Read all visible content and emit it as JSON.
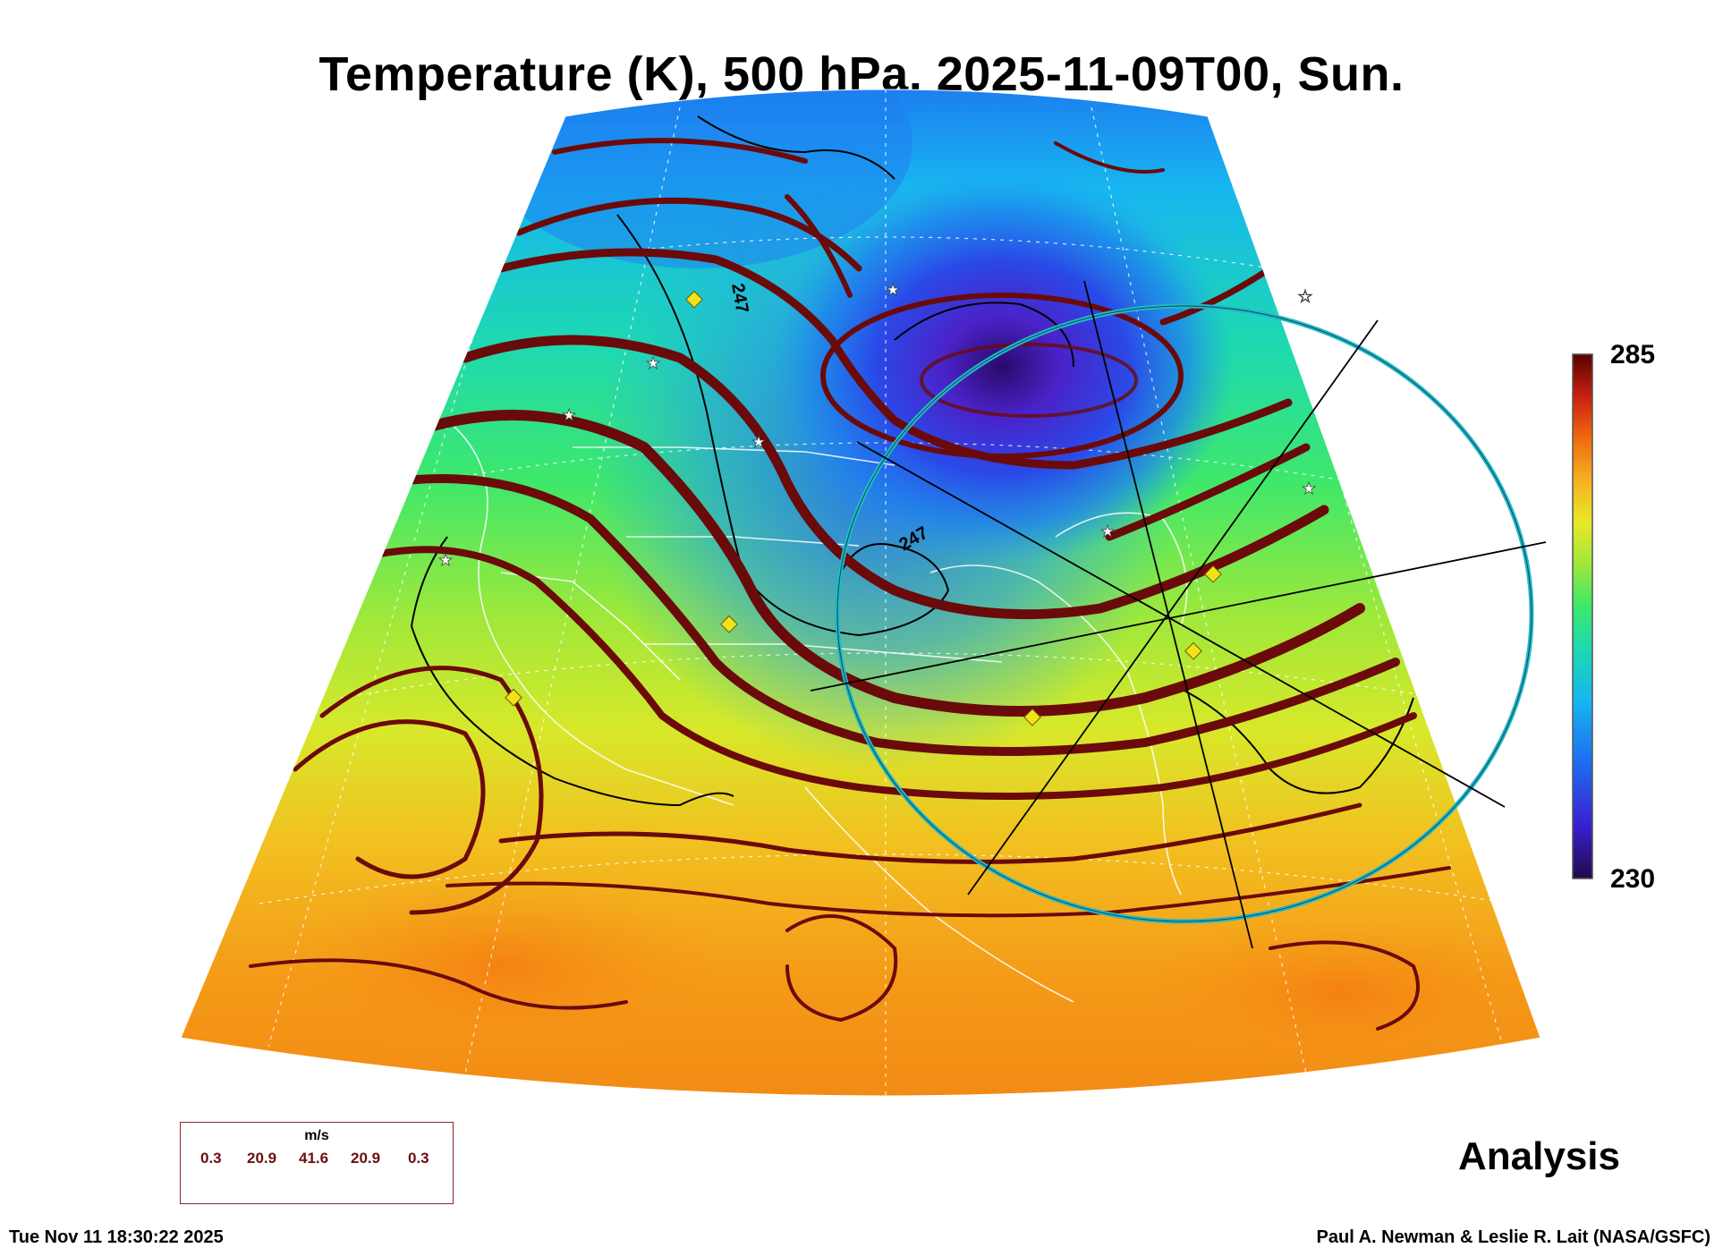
{
  "title": "Temperature (K), 500 hPa, 2025-11-09T00, Sun.",
  "colorbar": {
    "max_label": "285",
    "min_label": "230",
    "stops": [
      "#2a0a6b",
      "#3a1fd0",
      "#1e6cf0",
      "#17b6f0",
      "#1ed9b0",
      "#3ee86a",
      "#9fe83a",
      "#e8e828",
      "#f5b020",
      "#f06a10",
      "#d82a0a",
      "#8a0a0a",
      "#5a0000"
    ]
  },
  "contour_labels": [
    "247",
    "247"
  ],
  "analysis_label": "Analysis",
  "wind_key": {
    "unit": "m/s",
    "values": [
      "0.3",
      "20.9",
      "41.6",
      "20.9",
      "0.3"
    ]
  },
  "timestamp": "Tue Nov 11 18:30:22 2025",
  "credit": "Paul A. Newman & Leslie R. Lait (NASA/GSFC)",
  "colors": {
    "streamline": "#6b0a0a",
    "ring": "#22b8c8",
    "marker_fill": "#f2e21a",
    "cold_core": "#3a1a9a"
  }
}
